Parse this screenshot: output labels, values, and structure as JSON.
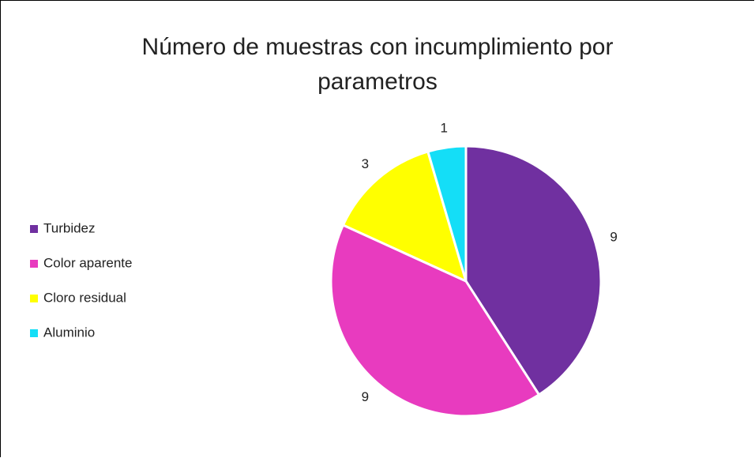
{
  "chart_data": {
    "type": "pie",
    "title": "Número de muestras con incumplimiento por parametros",
    "categories": [
      "Turbidez",
      "Color aparente",
      "Cloro residual",
      "Aluminio"
    ],
    "values": [
      9,
      9,
      3,
      1
    ],
    "colors": [
      "#7030a0",
      "#e83bbf",
      "#ffff00",
      "#14def7"
    ],
    "legend": "left"
  }
}
